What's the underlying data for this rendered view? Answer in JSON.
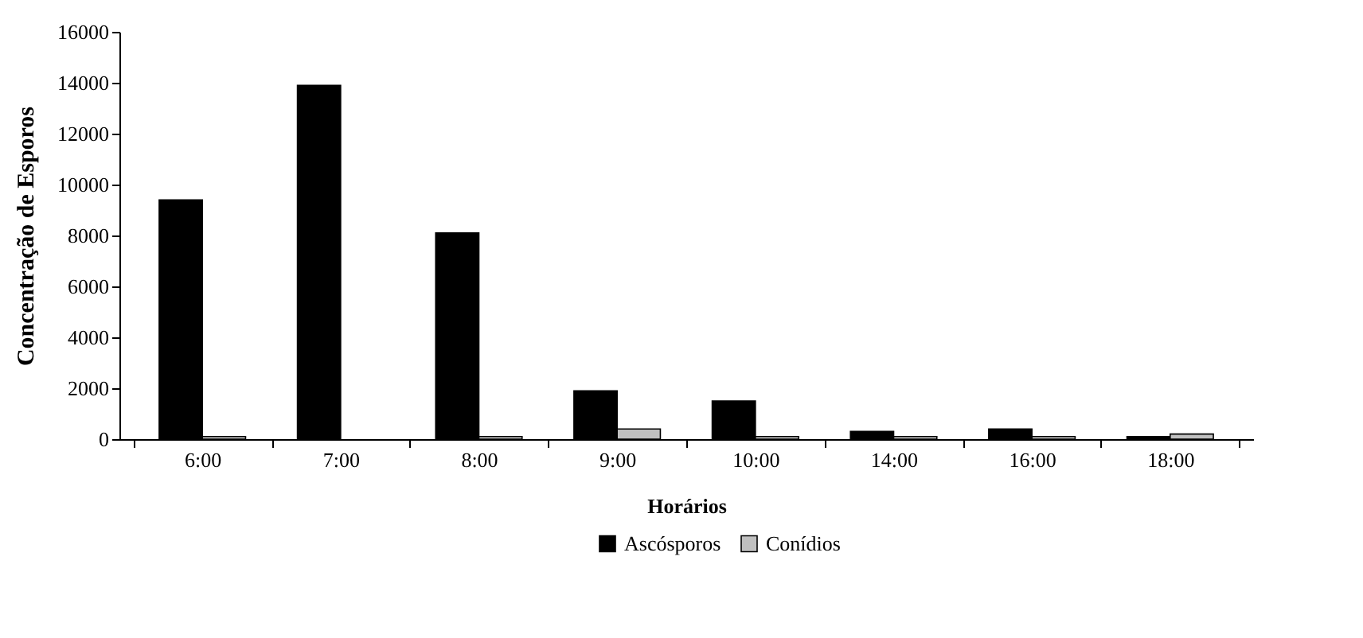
{
  "chart_data": {
    "type": "bar",
    "xlabel": "Horários",
    "ylabel": "Concentração de Esporos",
    "categories": [
      "6:00",
      "7:00",
      "8:00",
      "9:00",
      "10:00",
      "14:00",
      "16:00",
      "18:00"
    ],
    "series": [
      {
        "name": "Ascósporos",
        "color": "#000000",
        "values": [
          9400,
          13900,
          8100,
          1900,
          1500,
          300,
          400,
          100
        ]
      },
      {
        "name": "Conídios",
        "color": "#c0c0c0",
        "values": [
          100,
          0,
          100,
          400,
          100,
          100,
          100,
          200
        ]
      }
    ],
    "ylim": [
      0,
      16000
    ],
    "yticks": [
      0,
      2000,
      4000,
      6000,
      8000,
      10000,
      12000,
      14000,
      16000
    ],
    "grid": false,
    "legend": "bottom"
  }
}
